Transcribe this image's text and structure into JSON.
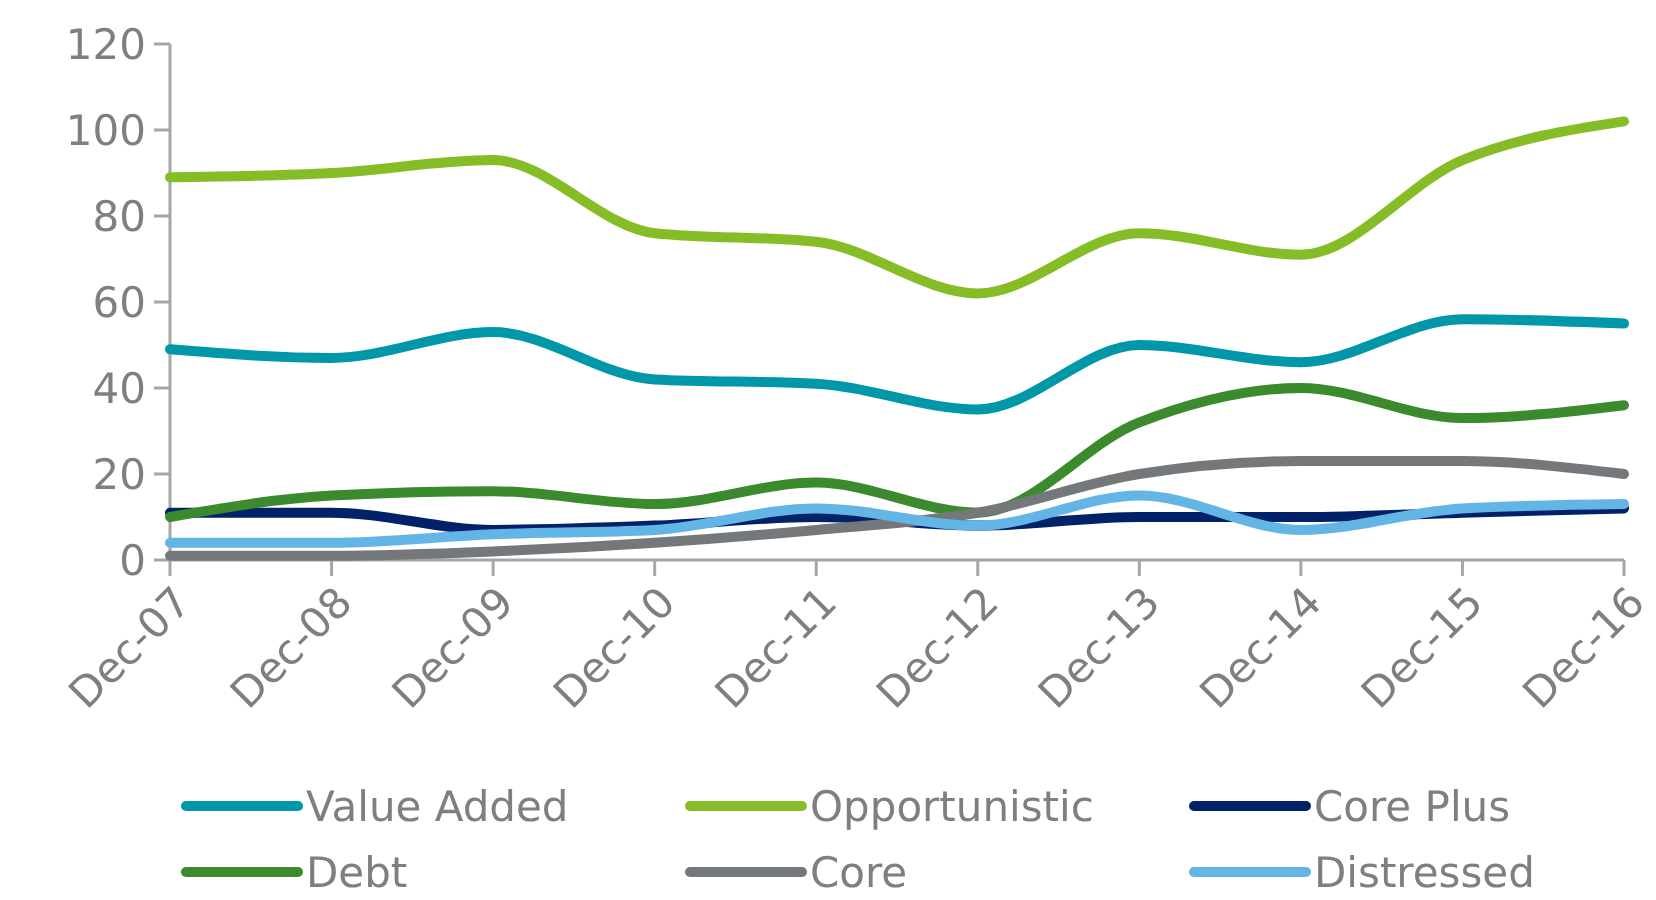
{
  "chart_data": {
    "type": "line",
    "categories": [
      "Dec-07",
      "Dec-08",
      "Dec-09",
      "Dec-10",
      "Dec-11",
      "Dec-12",
      "Dec-13",
      "Dec-14",
      "Dec-15",
      "Dec-16"
    ],
    "ylim": [
      0,
      120
    ],
    "yticks": [
      0,
      20,
      40,
      60,
      80,
      100,
      120
    ],
    "grid": false,
    "legend": "bottom",
    "marker": "none",
    "line_style": "solid",
    "series": [
      {
        "name": "Value Added",
        "color": "#0098a8",
        "values": [
          49,
          47,
          53,
          42,
          41,
          35,
          50,
          46,
          56,
          55
        ]
      },
      {
        "name": "Opportunistic",
        "color": "#86bc25",
        "values": [
          89,
          90,
          93,
          76,
          74,
          62,
          76,
          71,
          93,
          102
        ]
      },
      {
        "name": "Core Plus",
        "color": "#012169",
        "values": [
          11,
          11,
          7,
          8,
          10,
          8,
          10,
          10,
          11,
          12
        ]
      },
      {
        "name": "Debt",
        "color": "#3b8a2e",
        "values": [
          10,
          15,
          16,
          13,
          18,
          11,
          32,
          40,
          33,
          36
        ]
      },
      {
        "name": "Core",
        "color": "#75787b",
        "values": [
          1,
          1,
          2,
          4,
          7,
          11,
          20,
          23,
          23,
          20
        ]
      },
      {
        "name": "Distressed",
        "color": "#62b5e5",
        "values": [
          4,
          4,
          6,
          7,
          12,
          8,
          15,
          7,
          12,
          13
        ]
      }
    ]
  }
}
